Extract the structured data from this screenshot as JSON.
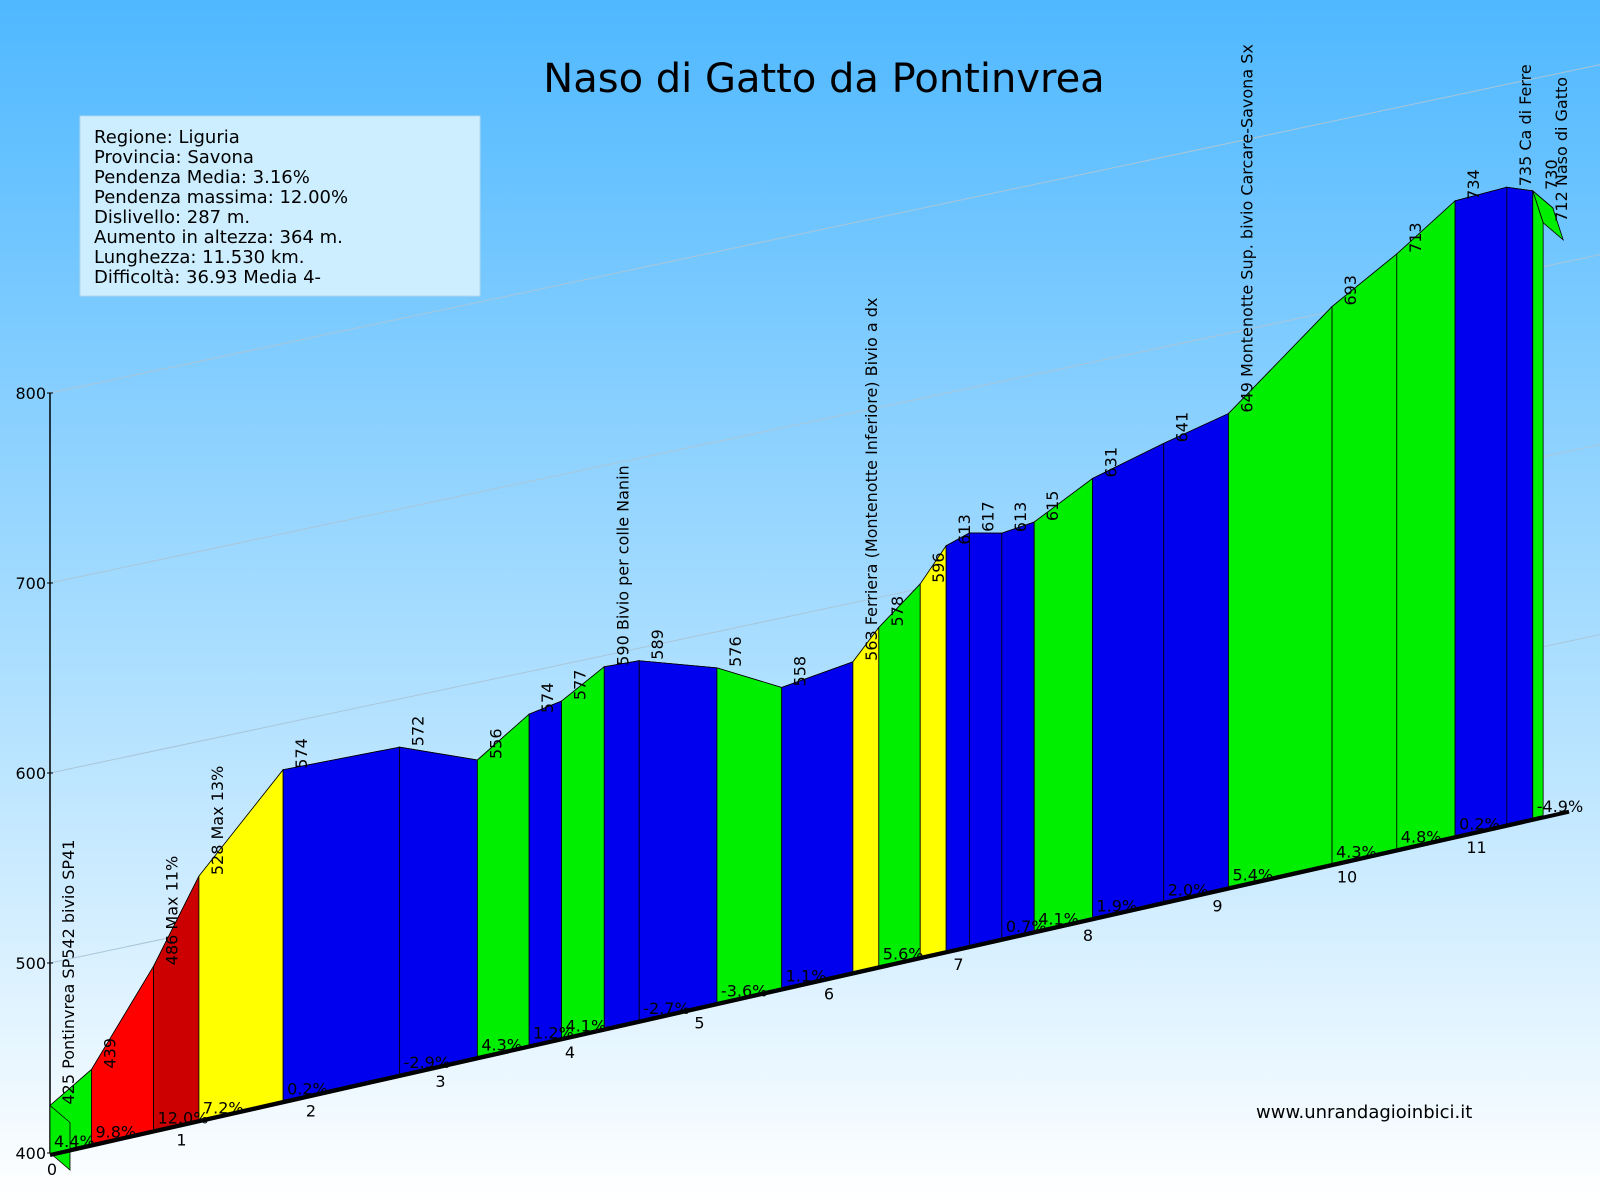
{
  "chart_data": {
    "type": "area",
    "title": "Naso di Gatto da Pontinvrea",
    "xlabel": "",
    "ylabel": "",
    "ylim": [
      400,
      800
    ],
    "y_ticks": [
      "400",
      "500",
      "600",
      "700",
      "800"
    ],
    "x_ticks": [
      "0",
      "1",
      "2",
      "3",
      "4",
      "5",
      "6",
      "7",
      "8",
      "9",
      "10",
      "11"
    ],
    "xlim": [
      0,
      11.53
    ],
    "grid": true,
    "slope_colors": {
      "descent_or_flat": "#0000ee",
      "under_5": "#00ee00",
      "5_to_9": "#ffff00",
      "9_to_12": "#ff0000",
      "over_12": "#cc0000"
    },
    "info": [
      "Regione: Liguria",
      "Provincia: Savona",
      "Pendenza Media: 3.16%",
      "Pendenza massima: 12.00%",
      "Dislivello:  287 m.",
      "Aumento in altezza:  364 m.",
      "Lunghezza:  11.530 km.",
      "Difficoltà: 36.93 Media 4-"
    ],
    "points": [
      {
        "x": 0.0,
        "elev": 425,
        "label": "425 Pontinvrea SP542 bivio SP41"
      },
      {
        "x": 0.32,
        "elev": 439,
        "label": "439"
      },
      {
        "x": 0.8,
        "elev": 486,
        "label": "486 Max 11%"
      },
      {
        "x": 1.15,
        "elev": 528,
        "label": "528 Max 13%"
      },
      {
        "x": 1.8,
        "elev": 574,
        "label": "574"
      },
      {
        "x": 2.7,
        "elev": 572,
        "label": "572"
      },
      {
        "x": 3.3,
        "elev": 556,
        "label": "556"
      },
      {
        "x": 3.7,
        "elev": 574,
        "label": "574"
      },
      {
        "x": 3.95,
        "elev": 577,
        "label": "577"
      },
      {
        "x": 4.28,
        "elev": 590,
        "label": "590 Bivio per colle Nanin"
      },
      {
        "x": 4.55,
        "elev": 589,
        "label": "589"
      },
      {
        "x": 5.15,
        "elev": 576,
        "label": "576"
      },
      {
        "x": 5.65,
        "elev": 558,
        "label": "558"
      },
      {
        "x": 6.2,
        "elev": 563,
        "label": "563 Ferriera (Montenotte Inferiore) Bivio a dx"
      },
      {
        "x": 6.4,
        "elev": 578,
        "label": "578"
      },
      {
        "x": 6.72,
        "elev": 596,
        "label": "596"
      },
      {
        "x": 6.92,
        "elev": 613,
        "label": "613"
      },
      {
        "x": 7.1,
        "elev": 617,
        "label": "617"
      },
      {
        "x": 7.35,
        "elev": 613,
        "label": "613"
      },
      {
        "x": 7.6,
        "elev": 615,
        "label": "615"
      },
      {
        "x": 8.05,
        "elev": 631,
        "label": "631"
      },
      {
        "x": 8.6,
        "elev": 641,
        "label": "641"
      },
      {
        "x": 9.1,
        "elev": 649,
        "label": "649 Montenotte Sup. bivio Carcare-Savona Sx"
      },
      {
        "x": 9.9,
        "elev": 693,
        "label": "693"
      },
      {
        "x": 10.4,
        "elev": 713,
        "label": "713"
      },
      {
        "x": 10.85,
        "elev": 734,
        "label": "734"
      },
      {
        "x": 11.25,
        "elev": 735,
        "label": "735 Ca di Ferre"
      },
      {
        "x": 11.45,
        "elev": 730,
        "label": "730"
      },
      {
        "x": 11.53,
        "elev": 712,
        "label": "712 Naso di Gatto"
      }
    ],
    "segments": [
      {
        "color": "#00ee00",
        "pct": "4.4%"
      },
      {
        "color": "#ff0000",
        "pct": "9.8%"
      },
      {
        "color": "#cc0000",
        "pct": "12.0%"
      },
      {
        "color": "#ffff00",
        "pct": "7.2%"
      },
      {
        "color": "#0000ee",
        "pct": "0.2%"
      },
      {
        "color": "#0000ee",
        "pct": "-2.9%"
      },
      {
        "color": "#00ee00",
        "pct": "4.3%"
      },
      {
        "color": "#0000ee",
        "pct": "1.2%"
      },
      {
        "color": "#00ee00",
        "pct": "4.1%"
      },
      {
        "color": "#0000ee",
        "pct": ""
      },
      {
        "color": "#0000ee",
        "pct": "-2.7%"
      },
      {
        "color": "#00ee00",
        "pct": "-3.6%"
      },
      {
        "color": "#0000ee",
        "pct": "1.1%"
      },
      {
        "color": "#ffff00",
        "pct": ""
      },
      {
        "color": "#00ee00",
        "pct": "5.6%"
      },
      {
        "color": "#ffff00",
        "pct": ""
      },
      {
        "color": "#0000ee",
        "pct": ""
      },
      {
        "color": "#0000ee",
        "pct": ""
      },
      {
        "color": "#0000ee",
        "pct": "0.7%"
      },
      {
        "color": "#00ee00",
        "pct": "4.1%"
      },
      {
        "color": "#0000ee",
        "pct": "1.9%"
      },
      {
        "color": "#0000ee",
        "pct": "2.0%"
      },
      {
        "color": "#00ee00",
        "pct": "5.4%"
      },
      {
        "color": "#00ee00",
        "pct": "4.3%"
      },
      {
        "color": "#00ee00",
        "pct": "4.8%"
      },
      {
        "color": "#0000ee",
        "pct": "0.2%"
      },
      {
        "color": "#0000ee",
        "pct": ""
      },
      {
        "color": "#00ee00",
        "pct": "-4.9%"
      }
    ]
  },
  "website": "www.unrandagioinbici.it"
}
